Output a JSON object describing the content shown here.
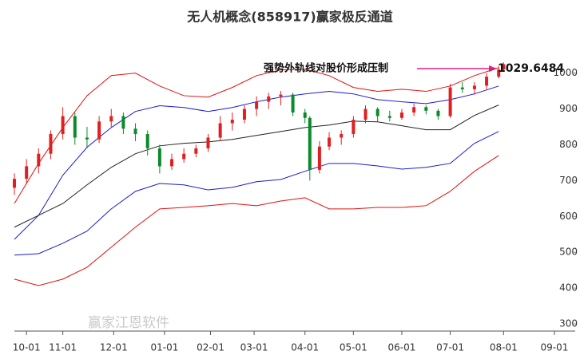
{
  "chart_data": {
    "type": "candlestick",
    "title": "无人机概念(858917)赢家极反通道",
    "annotation": "强势外轨线对股价形成压制",
    "price_label": "1029.6484",
    "watermark": "赢家江恩软件",
    "xlim": [
      0,
      225
    ],
    "ylim": [
      280,
      1115
    ],
    "yticks": [
      300,
      400,
      500,
      600,
      700,
      800,
      900,
      1000
    ],
    "xticks": [
      {
        "value": 5,
        "label": "10-01"
      },
      {
        "value": 20,
        "label": "11-01"
      },
      {
        "value": 41,
        "label": "12-01"
      },
      {
        "value": 62,
        "label": "01-01"
      },
      {
        "value": 81,
        "label": "02-01"
      },
      {
        "value": 99,
        "label": "03-01"
      },
      {
        "value": 120,
        "label": "04-01"
      },
      {
        "value": 140,
        "label": "05-01"
      },
      {
        "value": 160,
        "label": "06-01"
      },
      {
        "value": 180,
        "label": "07-01"
      },
      {
        "value": 202,
        "label": "08-01"
      },
      {
        "value": 223,
        "label": "09-01"
      }
    ],
    "up_color": "#e02020",
    "down_color": "#0a8a2a",
    "candles": {
      "x": [
        0,
        5,
        10,
        15,
        20,
        25,
        30,
        35,
        40,
        45,
        50,
        55,
        60,
        65,
        70,
        75,
        80,
        85,
        90,
        95,
        100,
        105,
        110,
        115,
        120,
        122,
        126,
        130,
        135,
        140,
        145,
        150,
        155,
        160,
        165,
        170,
        175,
        180,
        185,
        190,
        195,
        200,
        202
      ],
      "open": [
        680,
        705,
        740,
        775,
        830,
        880,
        820,
        815,
        865,
        880,
        845,
        830,
        790,
        740,
        760,
        775,
        790,
        820,
        860,
        870,
        900,
        920,
        935,
        940,
        890,
        875,
        730,
        795,
        820,
        830,
        870,
        900,
        880,
        875,
        890,
        905,
        895,
        880,
        960,
        955,
        965,
        990,
        1010
      ],
      "high": [
        720,
        760,
        790,
        840,
        905,
        890,
        850,
        880,
        900,
        890,
        860,
        840,
        800,
        775,
        790,
        800,
        830,
        880,
        890,
        910,
        935,
        945,
        950,
        945,
        900,
        880,
        810,
        835,
        840,
        880,
        910,
        905,
        895,
        900,
        915,
        910,
        900,
        970,
        975,
        975,
        1000,
        1020,
        1030
      ],
      "low": [
        660,
        690,
        720,
        760,
        815,
        800,
        790,
        805,
        850,
        830,
        810,
        770,
        720,
        730,
        750,
        765,
        780,
        810,
        840,
        860,
        880,
        900,
        910,
        880,
        860,
        700,
        720,
        785,
        800,
        820,
        860,
        865,
        865,
        870,
        880,
        885,
        870,
        875,
        945,
        940,
        955,
        985,
        1005
      ],
      "close": [
        705,
        740,
        775,
        830,
        880,
        820,
        815,
        865,
        880,
        845,
        830,
        790,
        740,
        760,
        775,
        790,
        820,
        860,
        870,
        900,
        920,
        935,
        940,
        890,
        875,
        730,
        795,
        820,
        830,
        870,
        900,
        880,
        875,
        890,
        905,
        895,
        880,
        960,
        955,
        965,
        990,
        1010,
        1025
      ]
    },
    "line_x": [
      0,
      10,
      20,
      30,
      40,
      50,
      60,
      70,
      80,
      90,
      100,
      110,
      120,
      130,
      140,
      150,
      160,
      170,
      180,
      190,
      200
    ],
    "series": [
      {
        "color": "#e01010",
        "values": [
          636,
          748,
          848,
          937,
          993,
          1000,
          964,
          937,
          933,
          960,
          993,
          1009,
          1011,
          993,
          960,
          949,
          955,
          949,
          964,
          993,
          1015
        ]
      },
      {
        "color": "#1a1ad8",
        "values": [
          536,
          603,
          715,
          793,
          848,
          893,
          909,
          904,
          893,
          904,
          920,
          933,
          942,
          949,
          942,
          926,
          920,
          915,
          926,
          942,
          964
        ]
      },
      {
        "color": "#222222",
        "values": [
          570,
          603,
          636,
          688,
          737,
          775,
          797,
          804,
          808,
          815,
          826,
          837,
          848,
          855,
          866,
          864,
          853,
          842,
          842,
          882,
          911
        ]
      },
      {
        "color": "#1a1ad8",
        "values": [
          492,
          496,
          525,
          559,
          621,
          670,
          692,
          688,
          674,
          681,
          697,
          703,
          726,
          748,
          748,
          741,
          732,
          737,
          748,
          804,
          837
        ]
      },
      {
        "color": "#e01010",
        "values": [
          425,
          407,
          425,
          458,
          514,
          570,
          621,
          625,
          630,
          636,
          630,
          643,
          652,
          621,
          621,
          625,
          625,
          630,
          670,
          726,
          770
        ]
      }
    ]
  }
}
